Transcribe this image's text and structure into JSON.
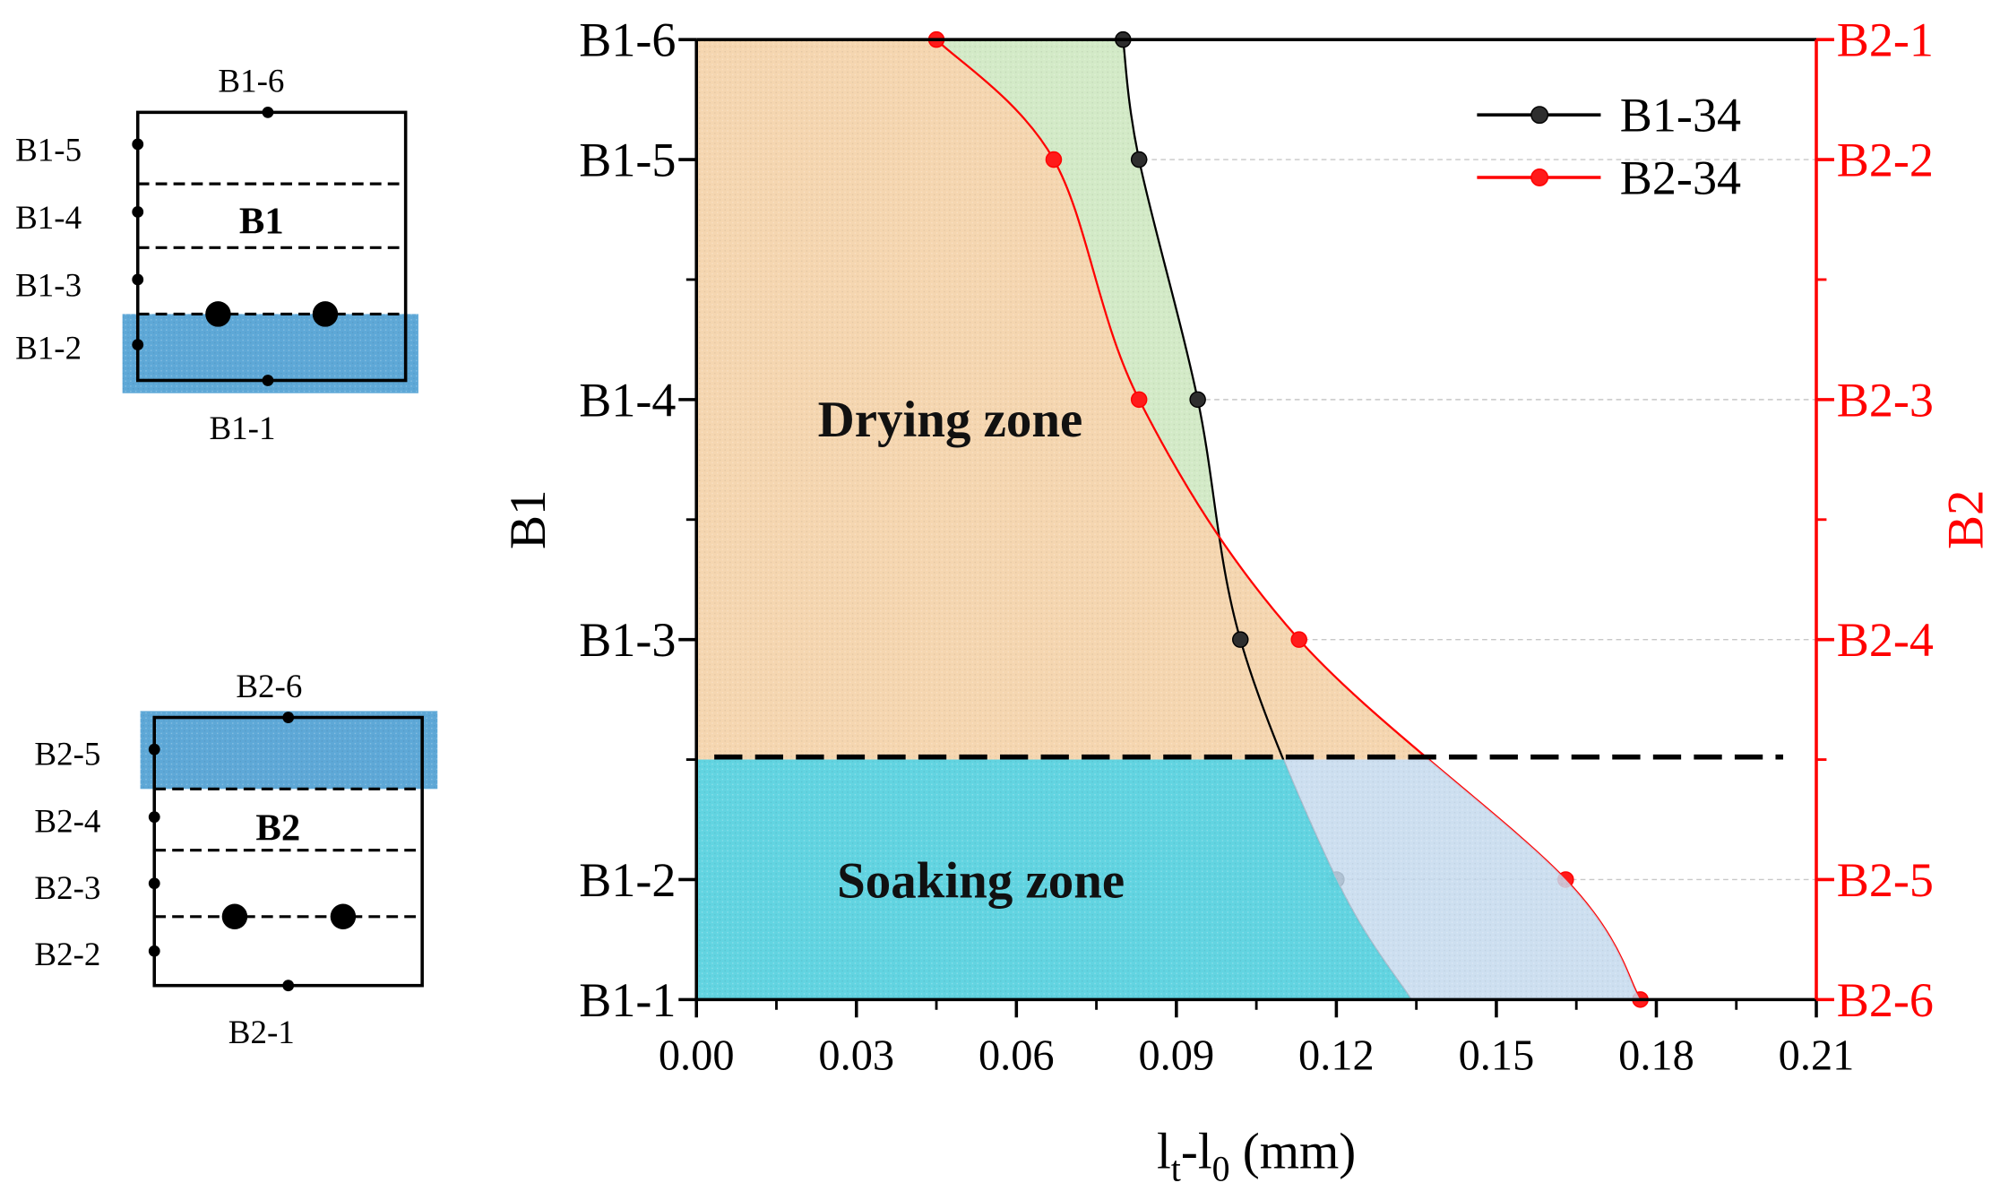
{
  "figure": {
    "insets": [
      {
        "title": "B1",
        "top_label": "B1-6",
        "side_labels": [
          "B1-5",
          "B1-4",
          "B1-3",
          "B1-2"
        ],
        "bottom_label": "B1-1",
        "highlight_color": "#5ea8d7"
      },
      {
        "title": "B2",
        "top_label": "B2-6",
        "side_labels": [
          "B2-5",
          "B2-4",
          "B2-3",
          "B2-2"
        ],
        "bottom_label": "B2-1",
        "highlight_color": "#5ea8d7"
      }
    ]
  },
  "chart_data": {
    "type": "line",
    "x_axis": {
      "label_parts": [
        "l",
        "t",
        "-l",
        "0",
        " (mm)"
      ],
      "range": [
        0,
        0.21
      ],
      "ticks": [
        "0.00",
        "0.03",
        "0.06",
        "0.09",
        "0.12",
        "0.15",
        "0.18",
        "0.21"
      ],
      "minor_step": 0.015
    },
    "y_range": [
      0,
      8
    ],
    "left_axis": {
      "title": "B1",
      "color": "#000000",
      "ticks": [
        {
          "label": "B1-1",
          "y": 0
        },
        {
          "label": "B1-2",
          "y": 1
        },
        {
          "label": "B1-3",
          "y": 3
        },
        {
          "label": "B1-4",
          "y": 5
        },
        {
          "label": "B1-5",
          "y": 7
        },
        {
          "label": "B1-6",
          "y": 8
        }
      ],
      "minor_ticks": [
        2,
        4,
        6
      ]
    },
    "right_axis": {
      "title": "B2",
      "color": "#ff0000",
      "ticks": [
        {
          "label": "B2-6",
          "y": 0
        },
        {
          "label": "B2-5",
          "y": 1
        },
        {
          "label": "B2-4",
          "y": 3
        },
        {
          "label": "B2-3",
          "y": 5
        },
        {
          "label": "B2-2",
          "y": 7
        },
        {
          "label": "B2-1",
          "y": 8
        }
      ],
      "minor_ticks": [
        2,
        4,
        6
      ]
    },
    "gridlines_y": [
      1,
      3,
      5,
      7
    ],
    "boundary_y": 2,
    "series": [
      {
        "name": "B1-34",
        "axis": "left",
        "color": "#000000",
        "marker_color": "#2e2e2e",
        "upper_fill": "#d3eac7",
        "lower_fill": "#50d2df",
        "points": [
          {
            "at": "B1-6",
            "x": 0.08
          },
          {
            "at": "B1-5",
            "x": 0.083
          },
          {
            "at": "B1-4",
            "x": 0.094
          },
          {
            "at": "B1-3",
            "x": 0.102
          },
          {
            "at": "B1-2",
            "x": 0.12
          },
          {
            "at": "B1-1",
            "x": 0.134,
            "marker": false
          }
        ]
      },
      {
        "name": "B2-34",
        "axis": "right",
        "color": "#ff0000",
        "marker_color": "#ff1a1a",
        "upper_fill": "#f5d6b0",
        "lower_fill": "#c5daee",
        "points": [
          {
            "at": "B2-1",
            "x": 0.045
          },
          {
            "at": "B2-2",
            "x": 0.067
          },
          {
            "at": "B2-3",
            "x": 0.083
          },
          {
            "at": "B2-4",
            "x": 0.113
          },
          {
            "at": "B2-5",
            "x": 0.163
          },
          {
            "at": "B2-6",
            "x": 0.177
          }
        ]
      }
    ],
    "annotations": [
      "Drying zone",
      "Soaking zone"
    ],
    "legend_position": "top-right"
  }
}
